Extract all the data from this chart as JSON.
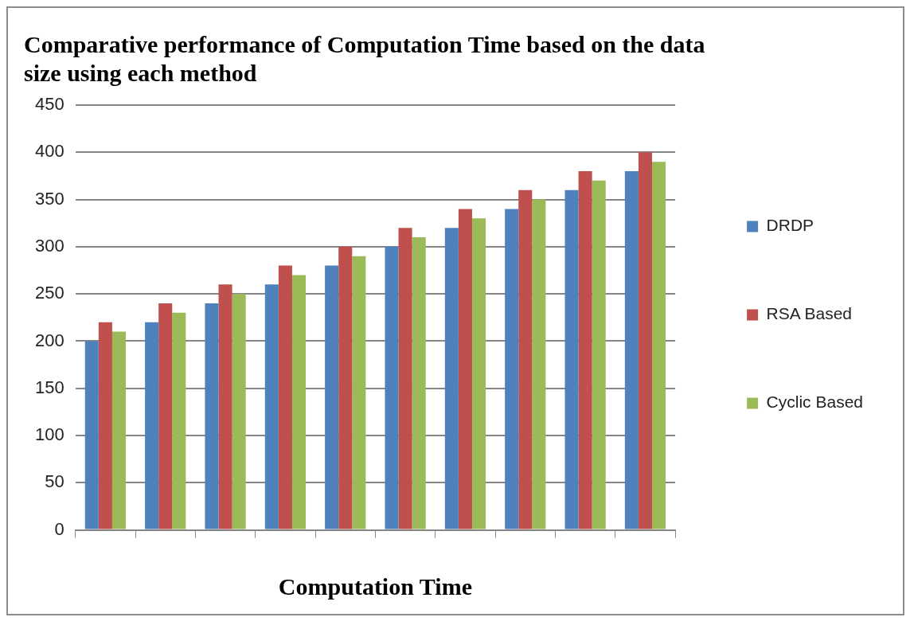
{
  "chart_data": {
    "type": "bar",
    "title": "Comparative performance of Computation Time based on the data size using each method",
    "xlabel": "Computation Time",
    "categories": [
      null,
      null,
      null,
      null,
      null,
      null,
      null,
      null,
      null,
      null
    ],
    "series": [
      {
        "name": "DRDP",
        "color": "#4f81bd",
        "values": [
          200,
          220,
          240,
          260,
          280,
          300,
          320,
          340,
          360,
          380
        ]
      },
      {
        "name": "RSA Based",
        "color": "#c0504d",
        "values": [
          220,
          240,
          260,
          280,
          300,
          320,
          340,
          360,
          380,
          400
        ]
      },
      {
        "name": "Cyclic Based",
        "color": "#9bbb59",
        "values": [
          210,
          230,
          250,
          270,
          290,
          310,
          330,
          350,
          370,
          390
        ]
      }
    ],
    "ylim": [
      0,
      450
    ],
    "yticks": [
      0,
      50,
      100,
      150,
      200,
      250,
      300,
      350,
      400,
      450
    ],
    "grid": "y",
    "legend": "right"
  }
}
